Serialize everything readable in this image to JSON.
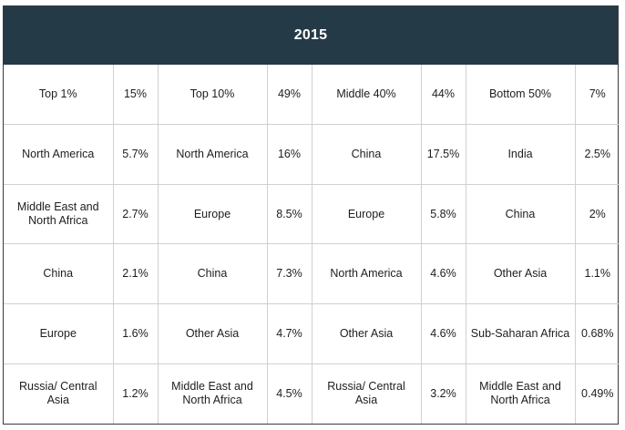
{
  "title": "2015",
  "rows": [
    [
      {
        "group": "Top 1%",
        "value": "15%"
      },
      {
        "group": "Top 10%",
        "value": "49%"
      },
      {
        "group": "Middle 40%",
        "value": "44%"
      },
      {
        "group": "Bottom 50%",
        "value": "7%"
      }
    ],
    [
      {
        "group": "North America",
        "value": "5.7%"
      },
      {
        "group": "North America",
        "value": "16%"
      },
      {
        "group": "China",
        "value": "17.5%"
      },
      {
        "group": "India",
        "value": "2.5%"
      }
    ],
    [
      {
        "group": "Middle East and North Africa",
        "value": "2.7%"
      },
      {
        "group": "Europe",
        "value": "8.5%"
      },
      {
        "group": "Europe",
        "value": "5.8%"
      },
      {
        "group": "China",
        "value": "2%"
      }
    ],
    [
      {
        "group": "China",
        "value": "2.1%"
      },
      {
        "group": "China",
        "value": "7.3%"
      },
      {
        "group": "North America",
        "value": "4.6%"
      },
      {
        "group": "Other Asia",
        "value": "1.1%"
      }
    ],
    [
      {
        "group": "Europe",
        "value": "1.6%"
      },
      {
        "group": "Other Asia",
        "value": "4.7%"
      },
      {
        "group": "Other Asia",
        "value": "4.6%"
      },
      {
        "group": "Sub-Saharan Africa",
        "value": "0.68%"
      }
    ],
    [
      {
        "group": "Russia/ Central Asia",
        "value": "1.2%"
      },
      {
        "group": "Middle East and North Africa",
        "value": "4.5%"
      },
      {
        "group": "Russia/ Central Asia",
        "value": "3.2%"
      },
      {
        "group": "Middle East and North Africa",
        "value": "0.49%"
      }
    ]
  ]
}
